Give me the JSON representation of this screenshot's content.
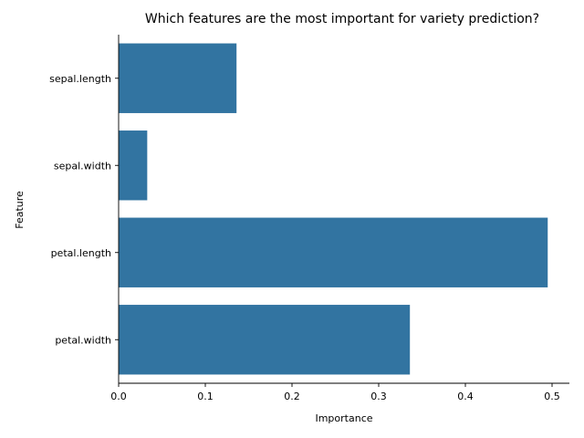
{
  "chart_data": {
    "type": "bar",
    "orientation": "horizontal",
    "title": "Which features are the most important for variety prediction?",
    "xlabel": "Importance",
    "ylabel": "Feature",
    "categories": [
      "sepal.length",
      "sepal.width",
      "petal.length",
      "petal.width"
    ],
    "values": [
      0.136,
      0.033,
      0.495,
      0.336
    ],
    "xlim": [
      0,
      0.52
    ],
    "xticks": [
      0.0,
      0.1,
      0.2,
      0.3,
      0.4,
      0.5
    ],
    "xtick_labels": [
      "0.0",
      "0.1",
      "0.2",
      "0.3",
      "0.4",
      "0.5"
    ],
    "grid": false,
    "bar_color": "#3274a1"
  }
}
